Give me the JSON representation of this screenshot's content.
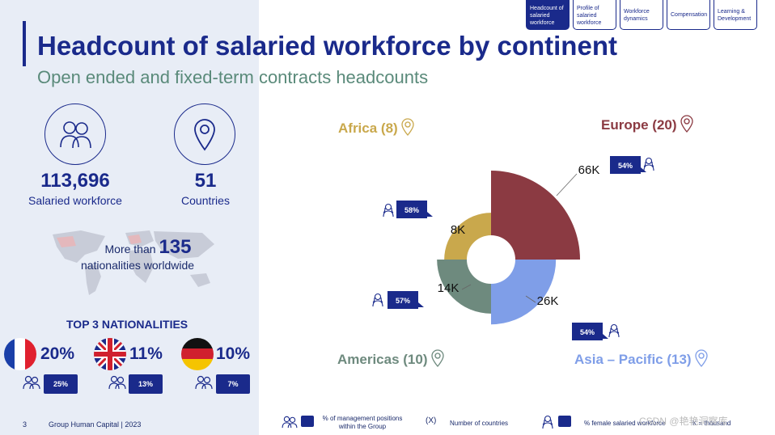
{
  "header": {
    "title": "Headcount of salaried workforce by continent",
    "subtitle": "Open ended and fixed-term contracts headcounts"
  },
  "nav": {
    "tabs": [
      {
        "label": "Headcount of salaried workforce",
        "active": true
      },
      {
        "label": "Profile of salaried workforce",
        "active": false
      },
      {
        "label": "Workforce dynamics",
        "active": false
      },
      {
        "label": "Compensation",
        "active": false
      },
      {
        "label": "Learning & Development",
        "active": false
      }
    ]
  },
  "stats": {
    "workforce_value": "113,696",
    "workforce_label": "Salaried workforce",
    "countries_value": "51",
    "countries_label": "Countries",
    "nationalities_prefix": "More than",
    "nationalities_value": "135",
    "nationalities_label": "nationalities worldwide"
  },
  "top3": {
    "title": "TOP 3 NATIONALITIES",
    "items": [
      {
        "country": "France",
        "share": "20%",
        "badge": "25%"
      },
      {
        "country": "United Kingdom",
        "share": "11%",
        "badge": "13%"
      },
      {
        "country": "Germany",
        "share": "10%",
        "badge": "7%"
      }
    ]
  },
  "regions": {
    "africa": "Africa (8)",
    "europe": "Europe (20)",
    "americas": "Americas (10)",
    "asia": "Asia – Pacific (13)"
  },
  "chart_data": {
    "type": "pie",
    "categories": [
      "Europe",
      "Asia – Pacific",
      "Americas",
      "Africa"
    ],
    "values": [
      66,
      26,
      14,
      8
    ],
    "value_labels": [
      "66K",
      "26K",
      "14K",
      "8K"
    ],
    "female_share_labels": [
      "54%",
      "54%",
      "57%",
      "58%"
    ],
    "colors": [
      "#8b3a42",
      "#7f9ee8",
      "#6e8a7e",
      "#c9a84c"
    ]
  },
  "legend": {
    "management_label": "% of management positions within the Group",
    "countries_label": "Number of countries",
    "countries_symbol": "(X)",
    "female_label": "% female salaried workforce",
    "k_label": "K = thousand"
  },
  "footer": {
    "page": "3",
    "source": "Group Human Capital | 2023"
  },
  "colors": {
    "primary": "#1a2a8b",
    "europe": "#8b3a42",
    "asia": "#7f9ee8",
    "americas": "#6e8a7e",
    "africa": "#c9a84c"
  },
  "icons": [
    "people-icon",
    "location-pin-icon",
    "world-map",
    "france-flag",
    "uk-flag",
    "germany-flag",
    "female-person-icon"
  ],
  "watermark": "CSDN @艳艳洞察库"
}
